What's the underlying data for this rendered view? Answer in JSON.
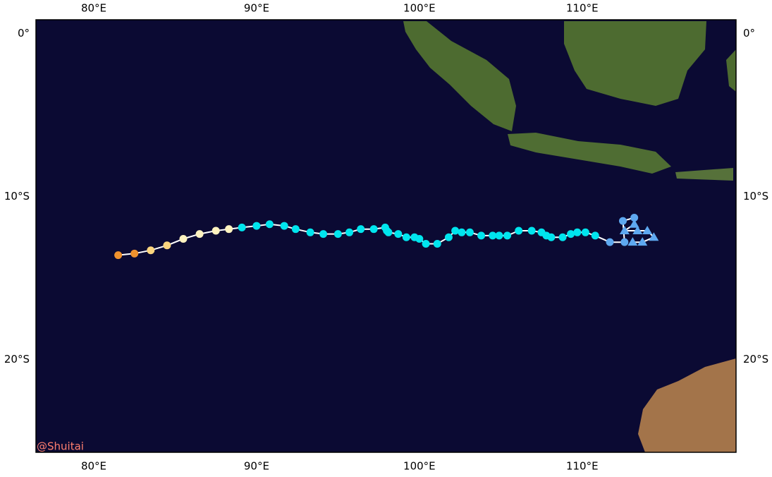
{
  "map": {
    "xlim": [
      76.45,
      119.45
    ],
    "ylim": [
      -25.7,
      0.85
    ],
    "xticks": [
      {
        "value": 80,
        "label": "80°E"
      },
      {
        "value": 90,
        "label": "90°E"
      },
      {
        "value": 100,
        "label": "100°E"
      },
      {
        "value": 110,
        "label": "110°E"
      }
    ],
    "yticks": [
      {
        "value": 0,
        "label": "0°"
      },
      {
        "value": -10,
        "label": "10°S"
      },
      {
        "value": -20,
        "label": "20°S"
      }
    ],
    "track": {
      "line_color": "#ffffff",
      "lon": [
        81.5,
        82.5,
        83.5,
        84.5,
        85.5,
        86.5,
        87.5,
        88.3,
        89.1,
        90.0,
        90.8,
        91.7,
        92.4,
        93.3,
        94.1,
        95.0,
        95.7,
        96.4,
        97.2,
        97.9,
        98.0,
        98.1,
        98.7,
        99.2,
        99.7,
        100.0,
        100.4,
        101.1,
        101.8,
        102.2,
        102.6,
        103.1,
        103.8,
        104.5,
        104.9,
        105.4,
        106.1,
        106.9,
        107.5,
        107.8,
        108.1,
        108.8,
        109.3,
        109.7,
        110.2,
        110.8,
        111.7,
        112.6,
        112.5,
        113.2,
        113.2,
        112.6,
        113.4,
        114.0,
        114.4,
        113.7,
        113.1
      ],
      "lat": [
        -13.6,
        -13.5,
        -13.3,
        -13.0,
        -12.6,
        -12.3,
        -12.1,
        -12.0,
        -11.9,
        -11.8,
        -11.7,
        -11.8,
        -12.0,
        -12.2,
        -12.3,
        -12.3,
        -12.2,
        -12.0,
        -12.0,
        -11.9,
        -12.1,
        -12.2,
        -12.3,
        -12.5,
        -12.5,
        -12.6,
        -12.9,
        -12.9,
        -12.5,
        -12.1,
        -12.2,
        -12.2,
        -12.4,
        -12.4,
        -12.4,
        -12.4,
        -12.1,
        -12.1,
        -12.2,
        -12.4,
        -12.5,
        -12.5,
        -12.3,
        -12.2,
        -12.2,
        -12.4,
        -12.8,
        -12.8,
        -11.5,
        -11.3,
        -11.7,
        -12.1,
        -12.1,
        -12.1,
        -12.5,
        -12.8,
        -12.8
      ],
      "colors": [
        "#f0922e",
        "#f0922e",
        "#fbd57f",
        "#fbd57f",
        "#fff3c0",
        "#fff3c0",
        "#fff3c0",
        "#fff3c0",
        "#00e5ee",
        "#00e5ee",
        "#00e5ee",
        "#00e5ee",
        "#00e5ee",
        "#00e5ee",
        "#00e5ee",
        "#00e5ee",
        "#00e5ee",
        "#00e5ee",
        "#00e5ee",
        "#00e5ee",
        "#00e5ee",
        "#00e5ee",
        "#00e5ee",
        "#00e5ee",
        "#00e5ee",
        "#00e5ee",
        "#00e5ee",
        "#00e5ee",
        "#00e5ee",
        "#00e5ee",
        "#00e5ee",
        "#00e5ee",
        "#00e5ee",
        "#00e5ee",
        "#00e5ee",
        "#00e5ee",
        "#00e5ee",
        "#00e5ee",
        "#00e5ee",
        "#00e5ee",
        "#00e5ee",
        "#00e5ee",
        "#00e5ee",
        "#00e5ee",
        "#00e5ee",
        "#00e5ee",
        "#5ea8f0",
        "#5ea8f0",
        "#5ea8f0",
        "#5ea8f0",
        "#5ea8f0",
        "#5ea8f0",
        "#5ea8f0",
        "#5ea8f0",
        "#5ea8f0",
        "#5ea8f0",
        "#5ea8f0"
      ],
      "markers": [
        "circle",
        "circle",
        "circle",
        "circle",
        "circle",
        "circle",
        "circle",
        "circle",
        "circle",
        "circle",
        "circle",
        "circle",
        "circle",
        "circle",
        "circle",
        "circle",
        "circle",
        "circle",
        "circle",
        "circle",
        "circle",
        "circle",
        "circle",
        "circle",
        "circle",
        "circle",
        "circle",
        "circle",
        "circle",
        "circle",
        "circle",
        "circle",
        "circle",
        "circle",
        "circle",
        "circle",
        "circle",
        "circle",
        "circle",
        "circle",
        "circle",
        "circle",
        "circle",
        "circle",
        "circle",
        "circle",
        "circle",
        "circle",
        "circle",
        "circle",
        "triangle",
        "triangle",
        "triangle",
        "triangle",
        "triangle",
        "triangle",
        "triangle"
      ]
    },
    "watermark": "@Shuitai"
  }
}
